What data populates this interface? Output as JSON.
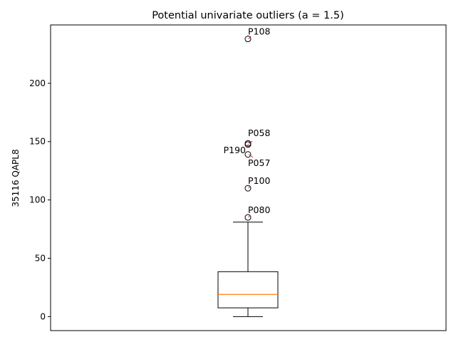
{
  "chart_data": {
    "type": "box",
    "title": "Potential univariate outliers (a = 1.5)",
    "xlabel": "",
    "ylabel": "35116 QAPL8",
    "ylim": [
      -12,
      250
    ],
    "y_ticks": [
      0,
      50,
      100,
      150,
      200
    ],
    "grid": false,
    "box": {
      "whisker_low": 0,
      "q1": 7.5,
      "median": 19,
      "q3": 38.5,
      "whisker_high": 81
    },
    "outliers": [
      {
        "label": "P108",
        "value": 238
      },
      {
        "label": "P058",
        "value": 148.5
      },
      {
        "label": "P190",
        "value": 147.5
      },
      {
        "label": "P057",
        "value": 139
      },
      {
        "label": "P100",
        "value": 110
      },
      {
        "label": "P080",
        "value": 85
      }
    ],
    "colors": {
      "box": "#000000",
      "median": "#ff7f0e",
      "annotation_arrow": "#d62728"
    }
  }
}
